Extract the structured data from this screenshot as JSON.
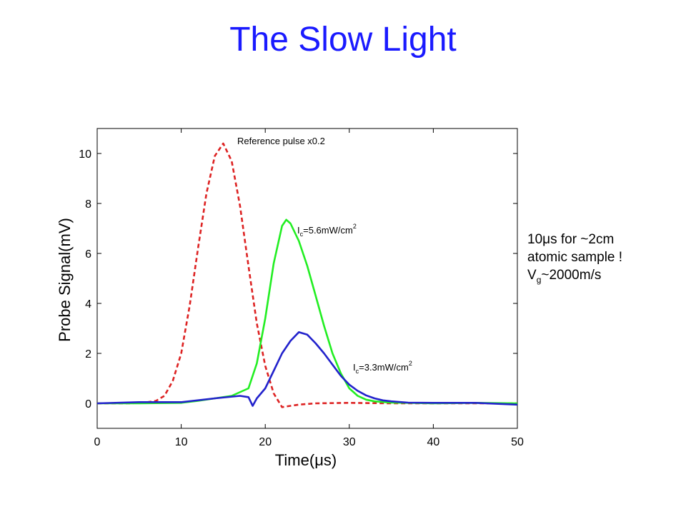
{
  "slide": {
    "title": "The Slow Light",
    "note": {
      "line1": "10μs for ~2cm",
      "line2": "atomic sample !",
      "line3_main": "V",
      "line3_sub": "g",
      "line3_rest": "~2000m/s"
    }
  },
  "chart_data": {
    "type": "line",
    "title": "",
    "xlabel": "Time(μs)",
    "ylabel": "Probe Signal(mV)",
    "xlim": [
      0,
      50
    ],
    "ylim": [
      -1,
      11
    ],
    "xticks": [
      0,
      10,
      20,
      30,
      40,
      50
    ],
    "yticks": [
      0,
      2,
      4,
      6,
      8,
      10
    ],
    "grid": false,
    "series": [
      {
        "label": "Reference pulse x0.2",
        "color": "#dd2222",
        "dashed": true,
        "x": [
          0,
          2,
          4,
          6,
          7,
          8,
          9,
          10,
          11,
          12,
          13,
          14,
          15,
          16,
          17,
          18,
          19,
          20,
          21,
          22,
          23,
          24,
          26,
          30,
          35,
          40,
          45,
          50
        ],
        "y": [
          0,
          0,
          0,
          0.05,
          0.1,
          0.3,
          0.9,
          2.0,
          3.9,
          6.2,
          8.4,
          9.9,
          10.4,
          9.7,
          7.9,
          5.5,
          3.2,
          1.5,
          0.4,
          -0.15,
          -0.1,
          -0.05,
          0,
          0.02,
          0,
          0,
          0,
          0
        ]
      },
      {
        "label_main": "I",
        "label_sub": "c",
        "label_rest": "=5.6mW/cm",
        "label_sup": "2",
        "color": "#22ee22",
        "dashed": false,
        "x": [
          0,
          5,
          10,
          12,
          14,
          16,
          18,
          19,
          20,
          21,
          22,
          22.5,
          23,
          24,
          25,
          26,
          27,
          28,
          29,
          30,
          31,
          32,
          33,
          35,
          40,
          45,
          50
        ],
        "y": [
          0,
          0,
          0.02,
          0.1,
          0.2,
          0.3,
          0.6,
          1.6,
          3.4,
          5.6,
          7.1,
          7.35,
          7.2,
          6.5,
          5.5,
          4.3,
          3.1,
          2.0,
          1.2,
          0.6,
          0.3,
          0.15,
          0.08,
          0.03,
          0,
          0.02,
          0
        ]
      },
      {
        "label_main": "I",
        "label_sub": "c",
        "label_rest": "=3.3mW/cm",
        "label_sup": "2",
        "color": "#2222cc",
        "dashed": false,
        "x": [
          0,
          5,
          10,
          14,
          17,
          18,
          18.5,
          19,
          20,
          21,
          22,
          23,
          24,
          25,
          26,
          27,
          28,
          29,
          30,
          31,
          32,
          33,
          34,
          35,
          37,
          40,
          45,
          50
        ],
        "y": [
          0,
          0.05,
          0.05,
          0.2,
          0.3,
          0.25,
          -0.1,
          0.2,
          0.6,
          1.3,
          2.0,
          2.5,
          2.85,
          2.75,
          2.4,
          2.0,
          1.55,
          1.1,
          0.75,
          0.5,
          0.32,
          0.2,
          0.12,
          0.08,
          0.03,
          0.02,
          0.02,
          -0.05
        ]
      }
    ]
  }
}
